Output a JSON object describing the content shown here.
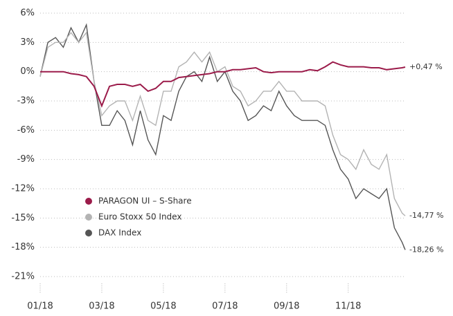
{
  "chart_data": {
    "type": "line",
    "x": [
      0,
      0.25,
      0.5,
      0.75,
      1,
      1.25,
      1.5,
      1.75,
      2,
      2.25,
      2.5,
      2.75,
      3,
      3.25,
      3.5,
      3.75,
      4,
      4.25,
      4.5,
      4.75,
      5,
      5.25,
      5.5,
      5.75,
      6,
      6.25,
      6.5,
      6.75,
      7,
      7.25,
      7.5,
      7.75,
      8,
      8.25,
      8.5,
      8.75,
      9,
      9.25,
      9.5,
      9.75,
      10,
      10.25,
      10.5,
      10.75,
      11,
      11.25,
      11.5,
      11.75,
      11.85
    ],
    "series": [
      {
        "name": "PARAGON UI – S-Share",
        "color": "#9b1b4a",
        "values": [
          0,
          0,
          0,
          0,
          -0.2,
          -0.3,
          -0.5,
          -1.5,
          -3.5,
          -1.5,
          -1.3,
          -1.3,
          -1.5,
          -1.3,
          -2,
          -1.7,
          -1,
          -1,
          -0.6,
          -0.5,
          -0.4,
          -0.3,
          -0.2,
          0,
          0,
          0.2,
          0.2,
          0.3,
          0.4,
          0,
          -0.1,
          0,
          0,
          0,
          0,
          0.2,
          0.1,
          0.5,
          1,
          0.7,
          0.5,
          0.5,
          0.5,
          0.4,
          0.4,
          0.2,
          0.3,
          0.4,
          0.47
        ],
        "value_labels": [
          null,
          null,
          null,
          null,
          null,
          null,
          null,
          null,
          null,
          null,
          null,
          null,
          null,
          null,
          null,
          null,
          null,
          null,
          null,
          null,
          null,
          null,
          null,
          null,
          null,
          null,
          null,
          null,
          null,
          null,
          null,
          null,
          null,
          null,
          null,
          null,
          null,
          null,
          null,
          null,
          null,
          null,
          null,
          null,
          null,
          null,
          null,
          null,
          "+0,47 %"
        ]
      },
      {
        "name": "Euro Stoxx 50 Index",
        "color": "#b3b3b3",
        "values": [
          -0.5,
          2.5,
          3,
          3,
          4,
          3,
          4,
          -1,
          -4.5,
          -3.5,
          -3,
          -3,
          -5,
          -2.5,
          -5,
          -5.5,
          -2,
          -2,
          0.5,
          1,
          2,
          1,
          2,
          0,
          0.5,
          -1.5,
          -2,
          -3.5,
          -3,
          -2,
          -2,
          -1,
          -2,
          -2,
          -3,
          -3,
          -3,
          -3.5,
          -6.5,
          -8.5,
          -9,
          -10,
          -8,
          -9.5,
          -10,
          -8.5,
          -13,
          -14.5,
          -14.77
        ],
        "value_labels": [
          null,
          null,
          null,
          null,
          null,
          null,
          null,
          null,
          null,
          null,
          null,
          null,
          null,
          null,
          null,
          null,
          null,
          null,
          null,
          null,
          null,
          null,
          null,
          null,
          null,
          null,
          null,
          null,
          null,
          null,
          null,
          null,
          null,
          null,
          null,
          null,
          null,
          null,
          null,
          null,
          null,
          null,
          null,
          null,
          null,
          null,
          null,
          null,
          "-14,77 %"
        ]
      },
      {
        "name": "DAX Index",
        "color": "#555555",
        "values": [
          -0.5,
          3,
          3.5,
          2.5,
          4.5,
          3,
          4.8,
          -1,
          -5.5,
          -5.5,
          -4,
          -5,
          -7.5,
          -4,
          -7,
          -8.5,
          -4.5,
          -5,
          -2,
          -0.5,
          0,
          -1,
          1.5,
          -1,
          0,
          -2,
          -3,
          -5,
          -4.5,
          -3.5,
          -4,
          -2,
          -3.5,
          -4.5,
          -5,
          -5,
          -5,
          -5.5,
          -8,
          -10,
          -11,
          -13,
          -12,
          -12.5,
          -13,
          -12,
          -16,
          -17.5,
          -18.26
        ],
        "value_labels": [
          null,
          null,
          null,
          null,
          null,
          null,
          null,
          null,
          null,
          null,
          null,
          null,
          null,
          null,
          null,
          null,
          null,
          null,
          null,
          null,
          null,
          null,
          null,
          null,
          null,
          null,
          null,
          null,
          null,
          null,
          null,
          null,
          null,
          null,
          null,
          null,
          null,
          null,
          null,
          null,
          null,
          null,
          null,
          null,
          null,
          null,
          null,
          null,
          "-18,26 %"
        ]
      }
    ],
    "xlim": [
      0,
      11.85
    ],
    "xticks": [
      {
        "value": 0,
        "label": "01/18"
      },
      {
        "value": 2,
        "label": "03/18"
      },
      {
        "value": 4,
        "label": "05/18"
      },
      {
        "value": 6,
        "label": "07/18"
      },
      {
        "value": 8,
        "label": "09/18"
      },
      {
        "value": 10,
        "label": "11/18"
      }
    ],
    "ylim": [
      -21,
      6
    ],
    "yticks": [
      {
        "value": 6,
        "label": "6%"
      },
      {
        "value": 3,
        "label": "3%"
      },
      {
        "value": 0,
        "label": "0%"
      },
      {
        "value": -3,
        "label": "-3%"
      },
      {
        "value": -6,
        "label": "-6%"
      },
      {
        "value": -9,
        "label": "-9%"
      },
      {
        "value": -12,
        "label": "-12%"
      },
      {
        "value": -15,
        "label": "-15%"
      },
      {
        "value": -18,
        "label": "-18%"
      },
      {
        "value": -21,
        "label": "-21%"
      }
    ],
    "grid": true
  }
}
